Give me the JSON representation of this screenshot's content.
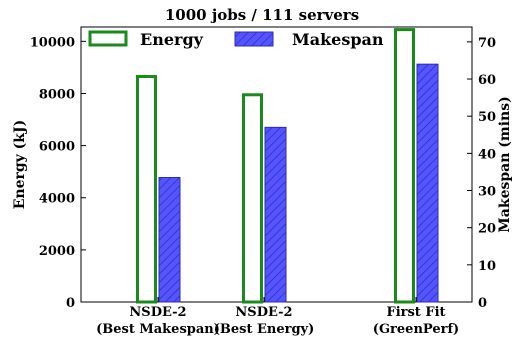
{
  "chart_data": {
    "type": "bar",
    "title": "1000 jobs / 111 servers",
    "categories": [
      [
        "NSDE-2",
        "(Best Makespan)"
      ],
      [
        "NSDE-2",
        "(Best Energy)"
      ],
      [
        "First Fit",
        "(GreenPerf)"
      ]
    ],
    "series": [
      {
        "name": "Energy",
        "axis": "left",
        "values": [
          8650,
          7950,
          10450
        ],
        "style": "outline",
        "color": "#1a8a1a"
      },
      {
        "name": "Makespan",
        "axis": "right",
        "values": [
          33.5,
          47,
          64
        ],
        "style": "hatched",
        "color": "#4444ee"
      }
    ],
    "ylabel_left": "Energy (kJ)",
    "ylabel_right": "Makespan (mins)",
    "ylim_left": [
      0,
      10550
    ],
    "ylim_right": [
      0,
      74
    ],
    "yticks_left": [
      0,
      2000,
      4000,
      6000,
      8000,
      10000
    ],
    "yticks_right": [
      0,
      10,
      20,
      30,
      40,
      50,
      60,
      70
    ],
    "grid": false,
    "legend_position": "top"
  }
}
